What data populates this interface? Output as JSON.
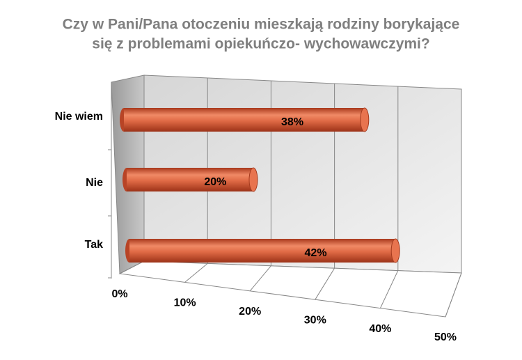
{
  "chart_data": {
    "type": "bar",
    "title": [
      "Czy w Pani/Pana otoczeniu mieszkają rodziny borykające",
      "się z problemami opiekuńczo- wychowawczymi?"
    ],
    "categories": [
      "Nie wiem",
      "Nie",
      "Tak"
    ],
    "values": [
      38,
      20,
      42
    ],
    "value_labels": [
      "38%",
      "20%",
      "42%"
    ],
    "color": "#d9603b",
    "xlim": [
      0,
      50
    ],
    "xticks": [
      {
        "value": 0,
        "label": "0%"
      },
      {
        "value": 10,
        "label": "10%"
      },
      {
        "value": 20,
        "label": "20%"
      },
      {
        "value": 30,
        "label": "30%"
      },
      {
        "value": 40,
        "label": "40%"
      },
      {
        "value": 50,
        "label": "50%"
      }
    ],
    "grid": true
  }
}
